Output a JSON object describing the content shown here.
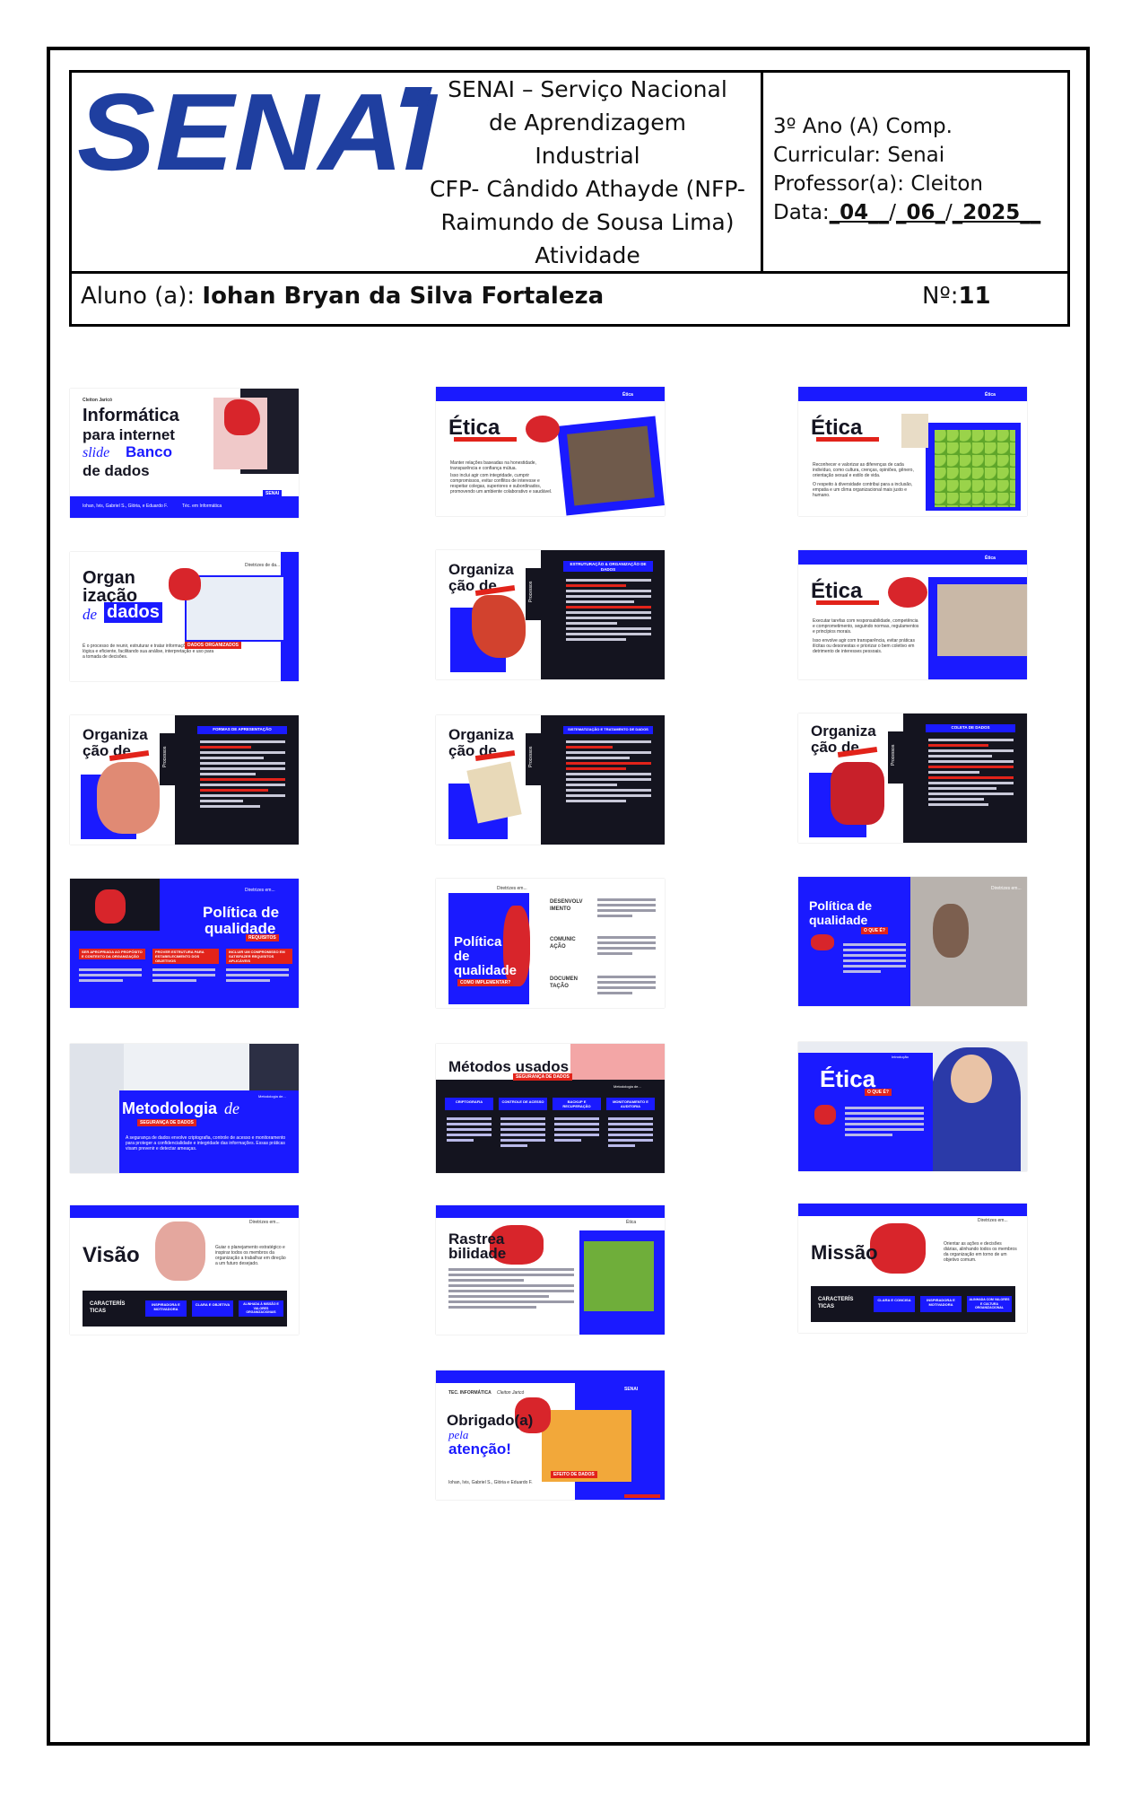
{
  "header": {
    "institution_lines": [
      "SENAI – Serviço Nacional",
      "de Aprendizagem",
      "Industrial",
      "CFP- Cândido Athayde (NFP-",
      "Raimundo de Sousa Lima)",
      "Atividade"
    ],
    "logo_text": "SENAI",
    "class_info": "3º Ano (A) Comp.",
    "curricular": "Curricular: Senai",
    "professor": "Professor(a): Cleiton",
    "date_label": "Data:",
    "date_day": "_04__",
    "date_month": "_06_",
    "date_year": "_2025__",
    "student_label": "Aluno (a):",
    "student_name": "Iohan Bryan da Silva Fortaleza",
    "number_label": "Nº:",
    "number_value": "11"
  },
  "colors": {
    "blue": "#1a1aff",
    "red": "#e2231a",
    "dark": "#14141f",
    "logo_blue": "#1f3fa0"
  },
  "slides": {
    "s1": {
      "author": "Cleiton Jaricó",
      "title1": "Informática",
      "title2": "para internet",
      "script": "slide",
      "title3": "Banco",
      "title4": "de dados",
      "footer": "Iohan, Ivis, Gabriel S., Glória, e Eduardo F.",
      "footer2": "Téc. em Informática",
      "badge": "SENAI"
    },
    "s2": {
      "title": "Ética",
      "tag": "Ética",
      "bullets": [
        "Manter relações baseadas na honestidade, transparência e confiança mútua.",
        "Isso inclui agir com integridade, cumprir compromissos, evitar conflitos de interesse e respeitar colegas, superiores e subordinados, promovendo um ambiente colaborativo e saudável."
      ]
    },
    "s3": {
      "title": "Ética",
      "tag": "Ética",
      "bullets": [
        "Reconhecer e valorizar as diferenças de cada indivíduo, como cultura, crenças, opiniões, gênero, orientação sexual e estilo de vida.",
        "O respeito à diversidade contribui para a inclusão, empatia e um clima organizacional mais justo e humano."
      ]
    },
    "s4": {
      "title1": "Organ",
      "title2": "ização",
      "script": "de",
      "title3": "dados",
      "tag": "Diretrizes de da...",
      "text": "É o processo de reunir, estruturar e tratar informações de forma lógica e eficiente, facilitando sua análise, interpretação e uso para a tomada de decisões.",
      "label": "DADOS ORGANIZADOS"
    },
    "s5": {
      "title1": "Organiza",
      "title2": "ção de",
      "side": "Processos",
      "head": "ESTRUTURAÇÃO & ORGANIZAÇÃO DE DADOS"
    },
    "s6": {
      "title": "Ética",
      "tag": "Ética",
      "bullets": [
        "Executar tarefas com responsabilidade, competência e comprometimento, seguindo normas, regulamentos e princípios morais.",
        "Isso envolve agir com transparência, evitar práticas ilícitas ou desonestas e priorizar o bem coletivo em detrimento de interesses pessoais."
      ]
    },
    "s7": {
      "title1": "Organiza",
      "title2": "ção de",
      "side": "Processos",
      "head": "FORMAS DE APRESENTAÇÃO"
    },
    "s8": {
      "title1": "Organiza",
      "title2": "ção de",
      "side": "Processos",
      "head": "SISTEMATIZAÇÃO E TRATAMENTO DE DADOS"
    },
    "s9": {
      "title1": "Organiza",
      "title2": "ção de",
      "side": "Processos",
      "head": "COLETA DE DADOS"
    },
    "s10": {
      "title1": "Política de",
      "title2": "qualidade",
      "sub": "REQUISITOS",
      "tag": "Diretrizes em...",
      "cols": [
        "SER APROPRIADA AO PROPÓSITO E CONTEXTO DA ORGANIZAÇÃO",
        "PROVER ESTRUTURA PARA ESTABELECIMENTO DOS OBJETIVOS",
        "INCLUIR UM COMPROMISSO EM SATISFAZER REQUISITOS APLICÁVEIS"
      ]
    },
    "s11": {
      "title1": "Política",
      "title2": "de",
      "title3": "qualidade",
      "sub": "COMO IMPLEMENTAR?",
      "tag": "Diretrizes em...",
      "items": [
        "DESENVOLV IMENTO",
        "COMUNIC AÇÃO",
        "DOCUMEN TAÇÃO"
      ]
    },
    "s12": {
      "title1": "Política de",
      "title2": "qualidade",
      "sub": "O QUE É?",
      "tag": "Diretrizes em..."
    },
    "s13": {
      "title1": "Metodologia",
      "script": "de",
      "sub": "SEGURANÇA DE DADOS",
      "tag": "Metodologia de...",
      "text": "A segurança de dados envolve criptografia, controle de acesso e monitoramento para proteger a confidencialidade e integridade das informações. Essas práticas visam prevenir e detectar ameaças."
    },
    "s14": {
      "title": "Métodos usados",
      "sub": "SEGURANÇA DE DADOS",
      "tag": "Metodologia de...",
      "cols": [
        "CRIPTOGRAFIA",
        "CONTROLE DE ACESSO",
        "BACKUP E RECUPERAÇÃO",
        "MONITORAMENTO E AUDITORIA"
      ]
    },
    "s15": {
      "title": "Ética",
      "sub": "O QUE É?",
      "tag": "Introdução"
    },
    "s16": {
      "title": "Visão",
      "tag": "Diretrizes em...",
      "text": "Guiar o planejamento estratégico e inspirar todos os membros da organização a trabalhar em direção a um futuro desejado.",
      "bar_label1": "CARACTERÍS",
      "bar_label2": "TICAS",
      "chips": [
        "INSPIRADORA E MOTIVADORA",
        "CLARA E OBJETIVA",
        "ALINHADA À MISSÃO E VALORES ORGANIZACIONAIS"
      ]
    },
    "s17": {
      "title1": "Rastrea",
      "title2": "bilidade",
      "tag": "Ética"
    },
    "s18": {
      "title": "Missão",
      "tag": "Diretrizes em...",
      "text": "Orientar as ações e decisões diárias, alinhando todos os membros da organização em torno de um objetivo comum.",
      "bar_label1": "CARACTERÍS",
      "bar_label2": "TICAS",
      "chips": [
        "CLARA E CONCISA",
        "INSPIRADORA E MOTIVADORA",
        "ALINHADA COM VALORES E CULTURA ORGANIZACIONAL"
      ]
    },
    "s19": {
      "course": "TEC. INFORMÁTICA",
      "teacher": "Cleiton Jaricó",
      "title1": "Obrigado(a)",
      "script": "pela",
      "title2": "atenção!",
      "tag": "SENAI",
      "label": "EFEITO DE DADOS",
      "footer": "Iohan, Ivis, Gabriel S., Glória e Eduardo F."
    }
  }
}
